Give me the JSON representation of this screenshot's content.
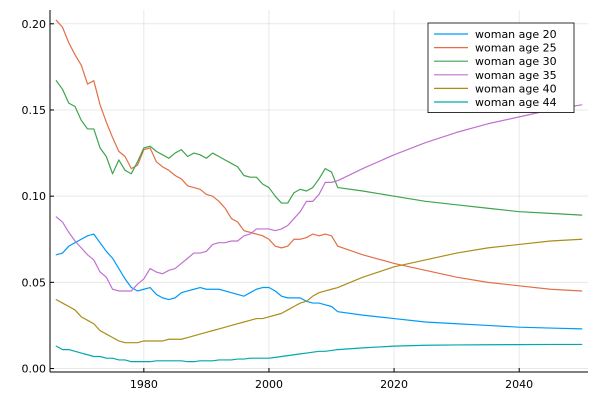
{
  "chart_data": {
    "type": "line",
    "title": "",
    "xlabel": "",
    "ylabel": "",
    "xlim": [
      1965,
      2051
    ],
    "ylim": [
      -0.002,
      0.208
    ],
    "xticks": [
      1980,
      2000,
      2020,
      2040
    ],
    "xtick_labels": [
      "1980",
      "2000",
      "2020",
      "2040"
    ],
    "yticks": [
      0.0,
      0.05,
      0.1,
      0.15,
      0.2
    ],
    "ytick_labels": [
      "0.00",
      "0.05",
      "0.10",
      "0.15",
      "0.20"
    ],
    "grid": true,
    "legend_position": "top-right",
    "series": [
      {
        "name": "woman age 20",
        "color": "#009af9",
        "x": [
          1966,
          1967,
          1968,
          1969,
          1970,
          1971,
          1972,
          1973,
          1974,
          1975,
          1976,
          1977,
          1978,
          1979,
          1980,
          1981,
          1982,
          1983,
          1984,
          1985,
          1986,
          1987,
          1988,
          1989,
          1990,
          1991,
          1992,
          1993,
          1994,
          1995,
          1996,
          1997,
          1998,
          1999,
          2000,
          2001,
          2002,
          2003,
          2004,
          2005,
          2006,
          2007,
          2008,
          2009,
          2010,
          2011,
          2015,
          2020,
          2025,
          2030,
          2035,
          2040,
          2045,
          2050
        ],
        "y": [
          0.066,
          0.067,
          0.071,
          0.073,
          0.075,
          0.077,
          0.078,
          0.073,
          0.068,
          0.064,
          0.058,
          0.052,
          0.047,
          0.045,
          0.046,
          0.047,
          0.043,
          0.041,
          0.04,
          0.041,
          0.044,
          0.045,
          0.046,
          0.047,
          0.046,
          0.046,
          0.046,
          0.045,
          0.044,
          0.043,
          0.042,
          0.044,
          0.046,
          0.047,
          0.047,
          0.045,
          0.042,
          0.041,
          0.041,
          0.041,
          0.039,
          0.038,
          0.038,
          0.037,
          0.036,
          0.033,
          0.031,
          0.029,
          0.027,
          0.026,
          0.025,
          0.024,
          0.0235,
          0.023
        ]
      },
      {
        "name": "woman age 25",
        "color": "#e26f46",
        "x": [
          1966,
          1967,
          1968,
          1969,
          1970,
          1971,
          1972,
          1973,
          1974,
          1975,
          1976,
          1977,
          1978,
          1979,
          1980,
          1981,
          1982,
          1983,
          1984,
          1985,
          1986,
          1987,
          1988,
          1989,
          1990,
          1991,
          1992,
          1993,
          1994,
          1995,
          1996,
          1997,
          1998,
          1999,
          2000,
          2001,
          2002,
          2003,
          2004,
          2005,
          2006,
          2007,
          2008,
          2009,
          2010,
          2011,
          2015,
          2020,
          2025,
          2030,
          2035,
          2040,
          2045,
          2050
        ],
        "y": [
          0.202,
          0.198,
          0.189,
          0.182,
          0.176,
          0.165,
          0.167,
          0.153,
          0.143,
          0.134,
          0.126,
          0.123,
          0.116,
          0.118,
          0.127,
          0.128,
          0.12,
          0.117,
          0.115,
          0.112,
          0.11,
          0.106,
          0.105,
          0.104,
          0.101,
          0.1,
          0.097,
          0.093,
          0.087,
          0.085,
          0.08,
          0.079,
          0.078,
          0.077,
          0.075,
          0.071,
          0.07,
          0.071,
          0.075,
          0.075,
          0.076,
          0.078,
          0.077,
          0.078,
          0.077,
          0.071,
          0.066,
          0.061,
          0.057,
          0.053,
          0.05,
          0.048,
          0.046,
          0.045
        ]
      },
      {
        "name": "woman age 30",
        "color": "#3ea44e",
        "x": [
          1966,
          1967,
          1968,
          1969,
          1970,
          1971,
          1972,
          1973,
          1974,
          1975,
          1976,
          1977,
          1978,
          1979,
          1980,
          1981,
          1982,
          1983,
          1984,
          1985,
          1986,
          1987,
          1988,
          1989,
          1990,
          1991,
          1992,
          1993,
          1994,
          1995,
          1996,
          1997,
          1998,
          1999,
          2000,
          2001,
          2002,
          2003,
          2004,
          2005,
          2006,
          2007,
          2008,
          2009,
          2010,
          2011,
          2015,
          2020,
          2025,
          2030,
          2035,
          2040,
          2045,
          2050
        ],
        "y": [
          0.167,
          0.162,
          0.154,
          0.152,
          0.144,
          0.139,
          0.139,
          0.128,
          0.123,
          0.113,
          0.121,
          0.115,
          0.113,
          0.12,
          0.128,
          0.129,
          0.126,
          0.124,
          0.122,
          0.125,
          0.127,
          0.123,
          0.125,
          0.124,
          0.122,
          0.125,
          0.123,
          0.121,
          0.119,
          0.117,
          0.112,
          0.111,
          0.111,
          0.107,
          0.105,
          0.1,
          0.096,
          0.096,
          0.102,
          0.104,
          0.103,
          0.105,
          0.11,
          0.116,
          0.114,
          0.105,
          0.103,
          0.1,
          0.097,
          0.095,
          0.093,
          0.091,
          0.09,
          0.089
        ]
      },
      {
        "name": "woman age 35",
        "color": "#c271d2",
        "x": [
          1966,
          1967,
          1968,
          1969,
          1970,
          1971,
          1972,
          1973,
          1974,
          1975,
          1976,
          1977,
          1978,
          1979,
          1980,
          1981,
          1982,
          1983,
          1984,
          1985,
          1986,
          1987,
          1988,
          1989,
          1990,
          1991,
          1992,
          1993,
          1994,
          1995,
          1996,
          1997,
          1998,
          1999,
          2000,
          2001,
          2002,
          2003,
          2004,
          2005,
          2006,
          2007,
          2008,
          2009,
          2010,
          2011,
          2015,
          2020,
          2025,
          2030,
          2035,
          2040,
          2045,
          2050
        ],
        "y": [
          0.088,
          0.085,
          0.079,
          0.074,
          0.07,
          0.066,
          0.063,
          0.056,
          0.053,
          0.046,
          0.045,
          0.045,
          0.045,
          0.049,
          0.052,
          0.058,
          0.056,
          0.055,
          0.057,
          0.058,
          0.061,
          0.064,
          0.067,
          0.067,
          0.068,
          0.072,
          0.073,
          0.073,
          0.074,
          0.074,
          0.077,
          0.078,
          0.081,
          0.081,
          0.081,
          0.08,
          0.081,
          0.083,
          0.087,
          0.091,
          0.097,
          0.097,
          0.101,
          0.108,
          0.108,
          0.109,
          0.116,
          0.124,
          0.131,
          0.137,
          0.142,
          0.146,
          0.15,
          0.153
        ]
      },
      {
        "name": "woman age 40",
        "color": "#ac8d18",
        "x": [
          1966,
          1967,
          1968,
          1969,
          1970,
          1971,
          1972,
          1973,
          1974,
          1975,
          1976,
          1977,
          1978,
          1979,
          1980,
          1981,
          1982,
          1983,
          1984,
          1985,
          1986,
          1987,
          1988,
          1989,
          1990,
          1991,
          1992,
          1993,
          1994,
          1995,
          1996,
          1997,
          1998,
          1999,
          2000,
          2001,
          2002,
          2003,
          2004,
          2005,
          2006,
          2007,
          2008,
          2009,
          2010,
          2011,
          2015,
          2020,
          2025,
          2030,
          2035,
          2040,
          2045,
          2050
        ],
        "y": [
          0.04,
          0.038,
          0.036,
          0.034,
          0.03,
          0.028,
          0.026,
          0.022,
          0.02,
          0.018,
          0.016,
          0.015,
          0.015,
          0.015,
          0.016,
          0.016,
          0.016,
          0.016,
          0.017,
          0.017,
          0.017,
          0.018,
          0.019,
          0.02,
          0.021,
          0.022,
          0.023,
          0.024,
          0.025,
          0.026,
          0.027,
          0.028,
          0.029,
          0.029,
          0.03,
          0.031,
          0.032,
          0.034,
          0.036,
          0.038,
          0.039,
          0.042,
          0.044,
          0.045,
          0.046,
          0.047,
          0.053,
          0.059,
          0.063,
          0.067,
          0.07,
          0.072,
          0.074,
          0.075
        ]
      },
      {
        "name": "woman age 44",
        "color": "#00a9ad",
        "x": [
          1966,
          1967,
          1968,
          1969,
          1970,
          1971,
          1972,
          1973,
          1974,
          1975,
          1976,
          1977,
          1978,
          1979,
          1980,
          1981,
          1982,
          1983,
          1984,
          1985,
          1986,
          1987,
          1988,
          1989,
          1990,
          1991,
          1992,
          1993,
          1994,
          1995,
          1996,
          1997,
          1998,
          1999,
          2000,
          2001,
          2002,
          2003,
          2004,
          2005,
          2006,
          2007,
          2008,
          2009,
          2010,
          2011,
          2015,
          2020,
          2025,
          2030,
          2035,
          2040,
          2045,
          2050
        ],
        "y": [
          0.013,
          0.011,
          0.011,
          0.01,
          0.009,
          0.008,
          0.007,
          0.007,
          0.006,
          0.006,
          0.005,
          0.005,
          0.004,
          0.004,
          0.004,
          0.004,
          0.0045,
          0.0045,
          0.0045,
          0.0045,
          0.0045,
          0.004,
          0.004,
          0.0045,
          0.0045,
          0.0045,
          0.005,
          0.005,
          0.005,
          0.0055,
          0.0055,
          0.006,
          0.006,
          0.006,
          0.006,
          0.0065,
          0.007,
          0.0075,
          0.008,
          0.0085,
          0.009,
          0.0095,
          0.01,
          0.01,
          0.0105,
          0.011,
          0.012,
          0.013,
          0.0135,
          0.0137,
          0.0138,
          0.0139,
          0.014,
          0.014
        ]
      }
    ]
  }
}
